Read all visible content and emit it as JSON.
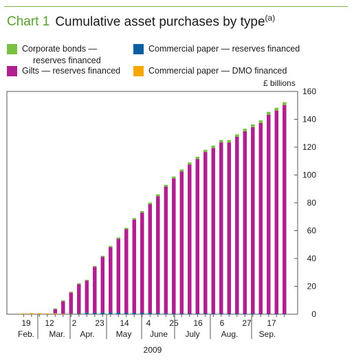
{
  "header": {
    "number": "Chart 1",
    "title": "Cumulative asset purchases by type",
    "footnote_mark": "(a)"
  },
  "legend": [
    {
      "label_line1": "Corporate bonds —",
      "label_line2": "reserves financed",
      "color": "#7ac143"
    },
    {
      "label_line1": "Gilts — reserves financed",
      "label_line2": "",
      "color": "#b0208f"
    },
    {
      "label_line1": "Commercial paper — reserves financed",
      "label_line2": "",
      "color": "#0b5fa0"
    },
    {
      "label_line1": "Commercial paper — DMO financed",
      "label_line2": "",
      "color": "#f5a800"
    }
  ],
  "colors": {
    "gilts": "#b0208f",
    "corporate": "#7ac143",
    "cp_reserves": "#0b5fa0",
    "cp_dmo": "#f5a800",
    "title_accent": "#5a9e2e"
  },
  "chart_data": {
    "type": "bar",
    "stacked": true,
    "unit_label": "£ billions",
    "year_label": "2009",
    "ylim": [
      0,
      160
    ],
    "yticks": [
      0,
      20,
      40,
      60,
      80,
      100,
      120,
      140,
      160
    ],
    "y_axis_side": "right",
    "day_labels": [
      "19",
      "12",
      "2",
      "23",
      "14",
      "4",
      "25",
      "16",
      "6",
      "27",
      "17"
    ],
    "month_labels": [
      "Feb.",
      "Mar.",
      "Apr.",
      "May",
      "June",
      "July",
      "Aug.",
      "Sep."
    ],
    "series": [
      {
        "name": "Gilts — reserves financed",
        "values": [
          0,
          0,
          0,
          0,
          3,
          9,
          15,
          21,
          23,
          33,
          40,
          47,
          53,
          60,
          67,
          72,
          78,
          84,
          91,
          97,
          102,
          107,
          111,
          116,
          119,
          123,
          123,
          127,
          131,
          134,
          137,
          143,
          146,
          150
        ]
      },
      {
        "name": "Corporate bonds — reserves financed",
        "values": [
          0,
          0,
          0,
          0,
          0.1,
          0.2,
          0.3,
          0.4,
          0.5,
          0.6,
          0.7,
          0.8,
          0.9,
          1,
          1,
          1.1,
          1.2,
          1.3,
          1.3,
          1.4,
          1.5,
          1.5,
          1.6,
          1.6,
          1.7,
          1.7,
          1.7,
          1.8,
          1.8,
          1.9,
          1.9,
          2,
          2,
          2
        ]
      },
      {
        "name": "Commercial paper — reserves financed",
        "values": [
          0,
          0,
          0,
          0,
          0,
          0,
          0.3,
          0.5,
          1,
          1,
          1.2,
          1.2,
          1.2,
          1,
          1,
          1,
          1,
          0.8,
          0.6,
          0.5,
          0.5,
          0.5,
          0.5,
          0.5,
          0.4,
          0.4,
          0.4,
          0.4,
          0.4,
          0.4,
          0.3,
          0.3,
          0.3,
          0.3
        ]
      },
      {
        "name": "Commercial paper — DMO financed",
        "values": [
          0.5,
          0.8,
          0.8,
          0.6,
          0.6,
          0.3,
          0.2,
          0.1,
          0.1,
          0,
          0,
          0,
          0,
          0,
          0,
          0,
          0,
          0,
          0,
          0,
          0,
          0,
          0,
          0,
          0,
          0,
          0,
          0,
          0,
          0,
          0,
          0,
          0,
          0
        ]
      }
    ]
  }
}
